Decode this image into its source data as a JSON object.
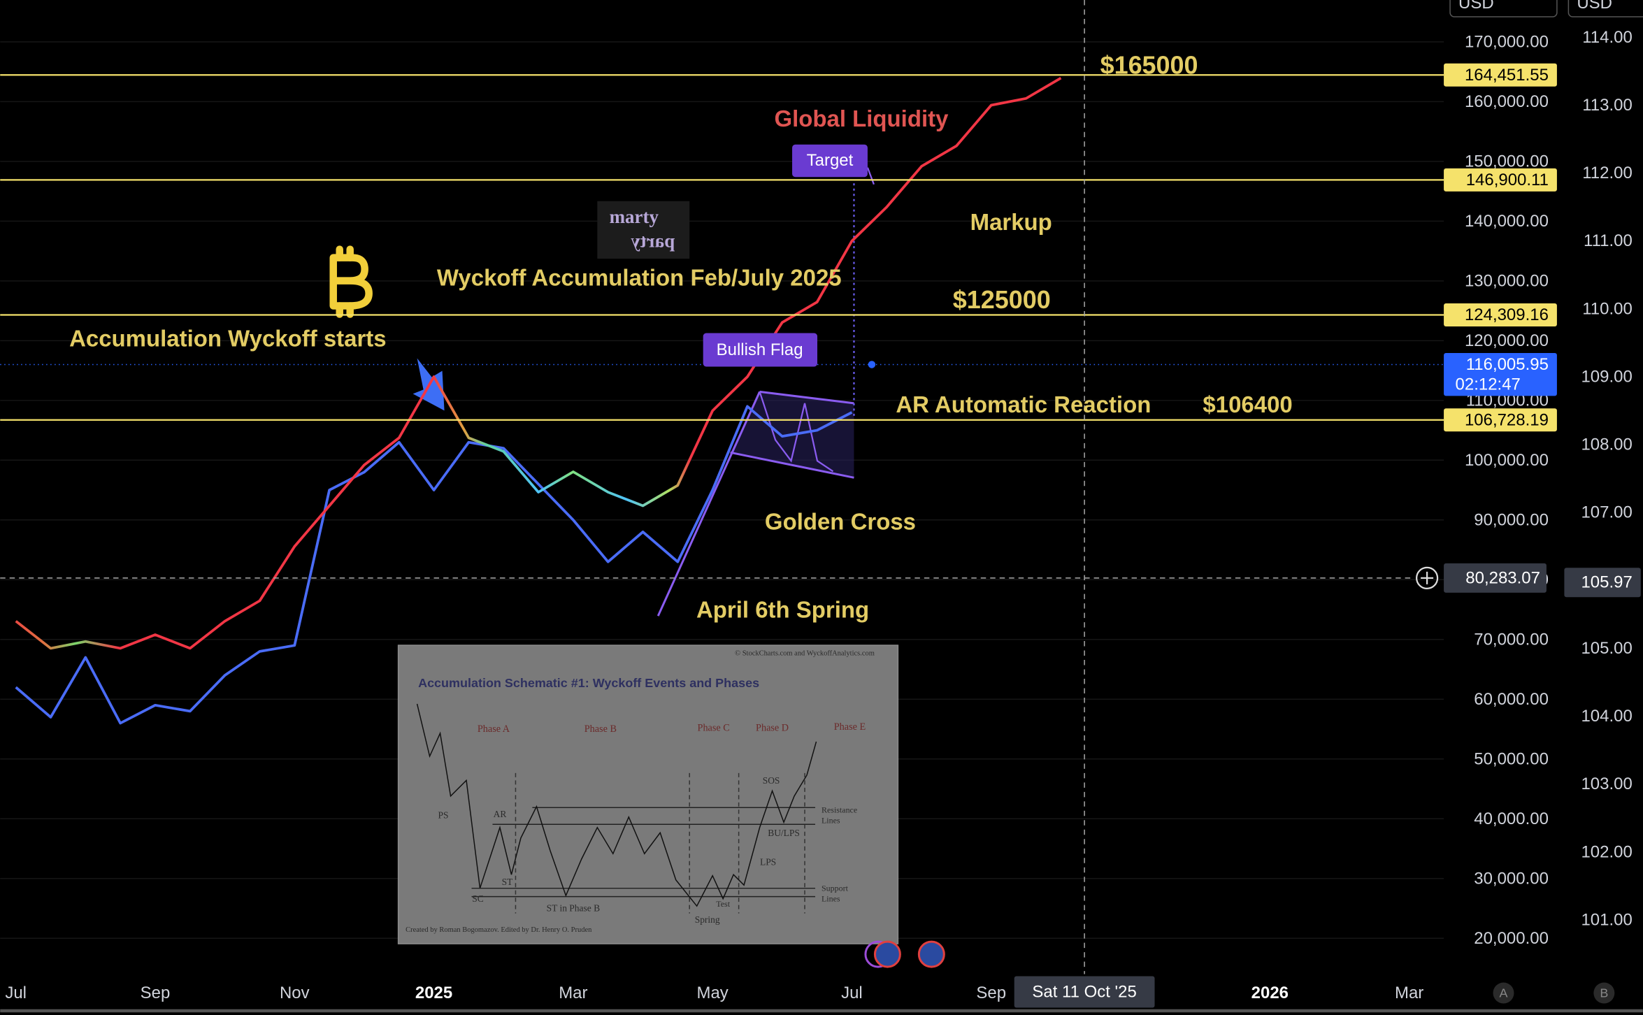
{
  "chart_data": {
    "type": "line",
    "categories": [
      "Jul",
      null,
      null,
      null,
      "Sep",
      null,
      null,
      null,
      "Nov",
      null,
      null,
      null,
      "2025",
      null,
      null,
      null,
      "Mar",
      null,
      null,
      null,
      "May",
      null,
      null,
      null,
      "Jul",
      null,
      null,
      null,
      "Sep",
      null,
      null,
      null,
      null,
      null,
      null,
      null,
      "2026",
      null,
      null,
      null,
      "Mar"
    ],
    "series": [
      {
        "color": "#4a6cf7",
        "values": [
          62000,
          57000,
          67000,
          56000,
          59000,
          58000,
          64000,
          68000,
          69000,
          95000,
          98000,
          103000,
          95000,
          103000,
          102000,
          96000,
          90000,
          83000,
          88000,
          83000,
          95000,
          109000,
          104000,
          105000,
          108000,
          null,
          null,
          null,
          null,
          null,
          null,
          null,
          null,
          null,
          null,
          null,
          null,
          null,
          null,
          null,
          null
        ]
      },
      {
        "name": "Global Liquidity",
        "color": "#f23645",
        "axis": "y2",
        "values": [
          105.4,
          105.0,
          105.1,
          105.0,
          105.2,
          105.0,
          105.4,
          105.7,
          106.5,
          107.1,
          107.7,
          108.1,
          109.0,
          108.1,
          107.9,
          107.3,
          107.6,
          107.3,
          107.1,
          107.4,
          108.5,
          109.0,
          109.8,
          110.1,
          111.0,
          111.5,
          112.1,
          112.4,
          113.0,
          113.1,
          113.4,
          null,
          null,
          null,
          null,
          null,
          null,
          null,
          null,
          null,
          null
        ]
      }
    ],
    "ylim": [
      14000,
      177000
    ],
    "yticks": [
      {
        "value": 20000,
        "label": "20,000.00"
      },
      {
        "value": 30000,
        "label": "30,000.00"
      },
      {
        "value": 40000,
        "label": "40,000.00"
      },
      {
        "value": 50000,
        "label": "50,000.00"
      },
      {
        "value": 60000,
        "label": "60,000.00"
      },
      {
        "value": 70000,
        "label": "70,000.00"
      },
      {
        "value": 80000,
        "label": "80,000.00"
      },
      {
        "value": 90000,
        "label": "90,000.00"
      },
      {
        "value": 100000,
        "label": "100,000.00"
      },
      {
        "value": 110000,
        "label": "110,000.00"
      },
      {
        "value": 120000,
        "label": "120,000.00"
      },
      {
        "value": 130000,
        "label": "130,000.00"
      },
      {
        "value": 140000,
        "label": "140,000.00"
      },
      {
        "value": 150000,
        "label": "150,000.00"
      },
      {
        "value": 160000,
        "label": "160,000.00"
      },
      {
        "value": 170000,
        "label": "170,000.00"
      }
    ],
    "y2lim": [
      100.2,
      114.55
    ],
    "y2ticks": [
      {
        "value": 101,
        "label": "101.00"
      },
      {
        "value": 102,
        "label": "102.00"
      },
      {
        "value": 103,
        "label": "103.00"
      },
      {
        "value": 104,
        "label": "104.00"
      },
      {
        "value": 105,
        "label": "105.00"
      },
      {
        "value": 106,
        "label": "106.00"
      },
      {
        "value": 107,
        "label": "107.00"
      },
      {
        "value": 108,
        "label": "108.00"
      },
      {
        "value": 109,
        "label": "109.00"
      },
      {
        "value": 110,
        "label": "110.00"
      },
      {
        "value": 111,
        "label": "111.00"
      },
      {
        "value": 112,
        "label": "112.00"
      },
      {
        "value": 113,
        "label": "113.00"
      },
      {
        "value": 114,
        "label": "114.00"
      }
    ],
    "grid": true,
    "price_lines": [
      {
        "value": 164451.55,
        "label": "164,451.55",
        "color": "#f5e26b"
      },
      {
        "value": 146900.11,
        "label": "146,900.11",
        "color": "#f5e26b"
      },
      {
        "value": 124309.16,
        "label": "124,309.16",
        "color": "#f5e26b"
      },
      {
        "value": 106728.19,
        "label": "106,728.19",
        "color": "#f5e26b"
      }
    ],
    "last_price": {
      "value": 116005.95,
      "label": "116,005.95",
      "countdown": "02:12:47",
      "color": "#2962ff"
    },
    "crosshair": {
      "date": "Sat 11 Oct '25",
      "price": {
        "value": 80283.07,
        "label": "80,283.07"
      },
      "y2": {
        "value": 105.97,
        "label": "105.97"
      }
    },
    "annotations": [
      "$165000",
      "Target",
      "Markup",
      "Wyckoff Accumulation Feb/July 2025",
      "$125000",
      "Accumulation Wyckoff starts",
      "Bullish Flag",
      "AR Automatic Reaction",
      "$106400",
      "Golden Cross",
      "April 6th Spring"
    ],
    "watermark": [
      "marty",
      "party"
    ],
    "currency": "USD",
    "scale_buttons": [
      "A",
      "B"
    ]
  },
  "inset": {
    "copyright": "© StockCharts.com and WyckoffAnalytics.com",
    "title": "Accumulation Schematic #1: Wyckoff Events and Phases",
    "phases": [
      "Phase A",
      "Phase B",
      "Phase C",
      "Phase D",
      "Phase E"
    ],
    "events": [
      "PS",
      "AR",
      "SC",
      "ST",
      "ST in Phase B",
      "Spring",
      "Test",
      "SOS",
      "BU/LPS",
      "LPS"
    ],
    "resistance": [
      "Resistance",
      "Lines"
    ],
    "support": [
      "Support",
      "Lines"
    ],
    "credit": "Created by Roman Bogomazov. Edited by Dr. Henry O. Pruden"
  }
}
